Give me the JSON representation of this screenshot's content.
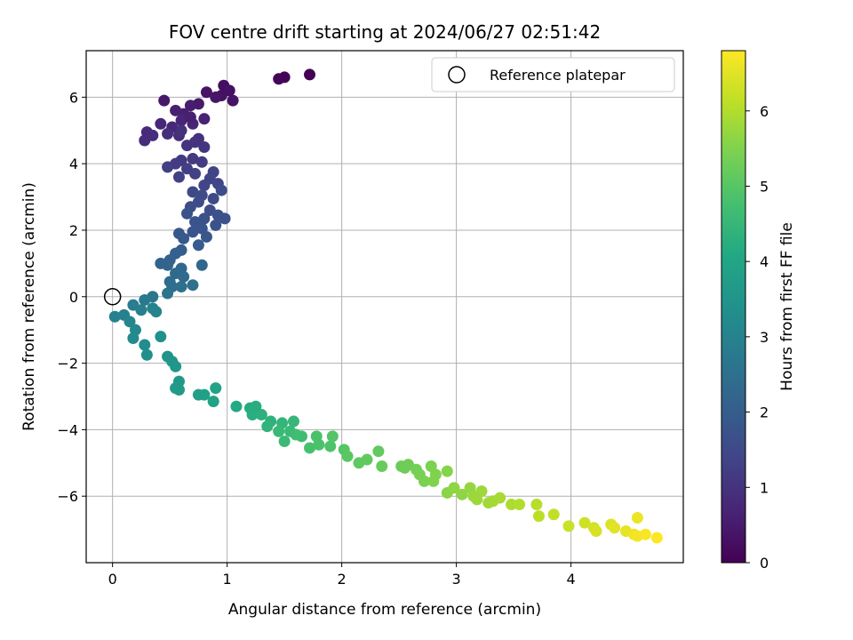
{
  "chart_data": {
    "type": "scatter",
    "title": "FOV centre drift starting at 2024/06/27 02:51:42",
    "xlabel": "Angular distance from reference (arcmin)",
    "ylabel": "Rotation from reference (arcmin)",
    "xlim": [
      -0.23,
      4.98
    ],
    "ylim": [
      -8.0,
      7.4
    ],
    "xticks": [
      0,
      1,
      2,
      3,
      4
    ],
    "yticks": [
      -6,
      -4,
      -2,
      0,
      2,
      4,
      6
    ],
    "grid": true,
    "legend": {
      "placement": "top-right",
      "entries": [
        "Reference platepar"
      ]
    },
    "reference_point": {
      "x": 0,
      "y": 0
    },
    "colorbar": {
      "label": "Hours from first FF file",
      "range": [
        0,
        6.8
      ],
      "ticks": [
        0,
        1,
        2,
        3,
        4,
        5,
        6
      ],
      "colormap": "viridis"
    },
    "points": [
      [
        1.72,
        6.68,
        0.0
      ],
      [
        1.5,
        6.6,
        0.05
      ],
      [
        1.45,
        6.55,
        0.08
      ],
      [
        0.97,
        6.35,
        0.25
      ],
      [
        1.02,
        6.2,
        0.3
      ],
      [
        0.95,
        6.05,
        0.3
      ],
      [
        1.05,
        5.9,
        0.35
      ],
      [
        0.82,
        6.15,
        0.35
      ],
      [
        0.9,
        6.0,
        0.4
      ],
      [
        0.45,
        5.9,
        0.45
      ],
      [
        0.75,
        5.8,
        0.5
      ],
      [
        0.68,
        5.75,
        0.55
      ],
      [
        0.55,
        5.6,
        0.6
      ],
      [
        0.62,
        5.5,
        0.6
      ],
      [
        0.8,
        5.35,
        0.65
      ],
      [
        0.7,
        5.2,
        0.7
      ],
      [
        0.6,
        5.3,
        0.7
      ],
      [
        0.52,
        5.1,
        0.75
      ],
      [
        0.42,
        5.2,
        0.75
      ],
      [
        0.3,
        4.95,
        0.8
      ],
      [
        0.35,
        4.85,
        0.85
      ],
      [
        0.28,
        4.7,
        0.85
      ],
      [
        0.48,
        4.9,
        0.9
      ],
      [
        0.58,
        4.85,
        0.9
      ],
      [
        0.75,
        4.75,
        0.95
      ],
      [
        0.65,
        4.55,
        1.0
      ],
      [
        0.72,
        4.65,
        1.0
      ],
      [
        0.8,
        4.5,
        1.05
      ],
      [
        0.6,
        5.0,
        0.95
      ],
      [
        0.68,
        5.4,
        0.6
      ],
      [
        0.7,
        4.15,
        1.15
      ],
      [
        0.6,
        4.1,
        1.15
      ],
      [
        0.78,
        4.05,
        1.2
      ],
      [
        0.55,
        4.0,
        1.2
      ],
      [
        0.48,
        3.9,
        1.25
      ],
      [
        0.65,
        3.85,
        1.25
      ],
      [
        0.72,
        3.7,
        1.3
      ],
      [
        0.58,
        3.6,
        1.3
      ],
      [
        0.88,
        3.75,
        1.35
      ],
      [
        0.85,
        3.55,
        1.35
      ],
      [
        0.92,
        3.4,
        1.4
      ],
      [
        0.8,
        3.35,
        1.4
      ],
      [
        0.7,
        3.15,
        1.45
      ],
      [
        0.78,
        3.05,
        1.5
      ],
      [
        0.88,
        2.95,
        1.5
      ],
      [
        0.95,
        3.2,
        1.55
      ],
      [
        0.75,
        2.85,
        1.55
      ],
      [
        0.68,
        2.7,
        1.6
      ],
      [
        0.85,
        2.6,
        1.6
      ],
      [
        0.92,
        2.45,
        1.65
      ],
      [
        0.8,
        2.35,
        1.65
      ],
      [
        0.98,
        2.35,
        1.7
      ],
      [
        0.65,
        2.5,
        1.7
      ],
      [
        0.72,
        2.25,
        1.75
      ],
      [
        0.9,
        2.15,
        1.75
      ],
      [
        0.78,
        2.05,
        1.8
      ],
      [
        0.7,
        1.95,
        1.8
      ],
      [
        0.82,
        1.8,
        1.85
      ],
      [
        0.58,
        1.9,
        1.85
      ],
      [
        0.62,
        1.75,
        1.9
      ],
      [
        0.75,
        1.55,
        1.95
      ],
      [
        0.6,
        1.4,
        2.0
      ],
      [
        0.55,
        1.3,
        2.05
      ],
      [
        0.5,
        1.1,
        2.1
      ],
      [
        0.42,
        1.0,
        2.15
      ],
      [
        0.48,
        0.95,
        2.2
      ],
      [
        0.6,
        0.85,
        2.25
      ],
      [
        0.78,
        0.95,
        2.25
      ],
      [
        0.55,
        0.7,
        2.3
      ],
      [
        0.62,
        0.6,
        2.35
      ],
      [
        0.5,
        0.45,
        2.4
      ],
      [
        0.52,
        0.3,
        2.45
      ],
      [
        0.6,
        0.3,
        2.5
      ],
      [
        0.7,
        0.35,
        2.5
      ],
      [
        0.48,
        0.1,
        2.6
      ],
      [
        0.35,
        0.0,
        2.65
      ],
      [
        0.28,
        -0.1,
        2.75
      ],
      [
        0.18,
        -0.25,
        2.85
      ],
      [
        0.25,
        -0.4,
        2.9
      ],
      [
        0.1,
        -0.55,
        2.95
      ],
      [
        0.02,
        -0.6,
        3.0
      ],
      [
        0.35,
        -0.35,
        3.0
      ],
      [
        0.38,
        -0.45,
        3.05
      ],
      [
        0.15,
        -0.75,
        3.1
      ],
      [
        0.2,
        -1.0,
        3.15
      ],
      [
        0.18,
        -1.25,
        3.2
      ],
      [
        0.28,
        -1.45,
        3.3
      ],
      [
        0.3,
        -1.75,
        3.35
      ],
      [
        0.42,
        -1.2,
        3.4
      ],
      [
        0.48,
        -1.8,
        3.45
      ],
      [
        0.52,
        -1.95,
        3.5
      ],
      [
        0.55,
        -2.1,
        3.55
      ],
      [
        0.58,
        -2.55,
        3.65
      ],
      [
        0.58,
        -2.8,
        3.7
      ],
      [
        0.55,
        -2.75,
        3.7
      ],
      [
        0.75,
        -2.95,
        3.8
      ],
      [
        0.8,
        -2.95,
        3.85
      ],
      [
        0.9,
        -2.75,
        3.9
      ],
      [
        0.88,
        -3.15,
        3.9
      ],
      [
        1.08,
        -3.3,
        4.1
      ],
      [
        1.2,
        -3.35,
        4.15
      ],
      [
        1.25,
        -3.3,
        4.2
      ],
      [
        1.22,
        -3.55,
        4.25
      ],
      [
        1.3,
        -3.55,
        4.3
      ],
      [
        1.38,
        -3.75,
        4.35
      ],
      [
        1.35,
        -3.9,
        4.4
      ],
      [
        1.48,
        -3.8,
        4.45
      ],
      [
        1.58,
        -3.75,
        4.5
      ],
      [
        1.45,
        -4.05,
        4.55
      ],
      [
        1.55,
        -4.05,
        4.55
      ],
      [
        1.5,
        -4.35,
        4.6
      ],
      [
        1.65,
        -4.2,
        4.65
      ],
      [
        1.6,
        -4.15,
        4.7
      ],
      [
        1.72,
        -4.55,
        4.8
      ],
      [
        1.8,
        -4.45,
        4.85
      ],
      [
        1.78,
        -4.2,
        4.85
      ],
      [
        1.9,
        -4.5,
        4.9
      ],
      [
        1.92,
        -4.2,
        4.95
      ],
      [
        2.02,
        -4.6,
        5.0
      ],
      [
        2.05,
        -4.8,
        5.05
      ],
      [
        2.15,
        -5.0,
        5.1
      ],
      [
        2.22,
        -4.9,
        5.15
      ],
      [
        2.32,
        -4.65,
        5.15
      ],
      [
        2.35,
        -5.1,
        5.2
      ],
      [
        2.52,
        -5.1,
        5.25
      ],
      [
        2.58,
        -5.05,
        5.3
      ],
      [
        2.55,
        -5.15,
        5.3
      ],
      [
        2.65,
        -5.2,
        5.35
      ],
      [
        2.68,
        -5.35,
        5.4
      ],
      [
        2.72,
        -5.55,
        5.45
      ],
      [
        2.78,
        -5.1,
        5.45
      ],
      [
        2.8,
        -5.55,
        5.5
      ],
      [
        2.82,
        -5.35,
        5.5
      ],
      [
        2.92,
        -5.25,
        5.55
      ],
      [
        2.92,
        -5.9,
        5.6
      ],
      [
        2.98,
        -5.75,
        5.65
      ],
      [
        3.05,
        -5.95,
        5.65
      ],
      [
        3.12,
        -5.75,
        5.7
      ],
      [
        3.15,
        -6.0,
        5.75
      ],
      [
        3.18,
        -6.1,
        5.8
      ],
      [
        3.22,
        -5.85,
        5.8
      ],
      [
        3.28,
        -6.2,
        5.85
      ],
      [
        3.32,
        -6.15,
        5.85
      ],
      [
        3.38,
        -6.05,
        5.9
      ],
      [
        3.48,
        -6.25,
        5.95
      ],
      [
        3.55,
        -6.25,
        6.0
      ],
      [
        3.7,
        -6.25,
        6.05
      ],
      [
        3.72,
        -6.6,
        6.1
      ],
      [
        3.85,
        -6.55,
        6.15
      ],
      [
        3.98,
        -6.9,
        6.25
      ],
      [
        4.12,
        -6.8,
        6.3
      ],
      [
        4.2,
        -6.95,
        6.35
      ],
      [
        4.22,
        -7.05,
        6.4
      ],
      [
        4.35,
        -6.85,
        6.45
      ],
      [
        4.38,
        -6.95,
        6.5
      ],
      [
        4.48,
        -7.05,
        6.55
      ],
      [
        4.58,
        -6.65,
        6.6
      ],
      [
        4.55,
        -7.15,
        6.65
      ],
      [
        4.58,
        -7.2,
        6.7
      ],
      [
        4.65,
        -7.15,
        6.75
      ],
      [
        4.75,
        -7.25,
        6.8
      ]
    ]
  }
}
